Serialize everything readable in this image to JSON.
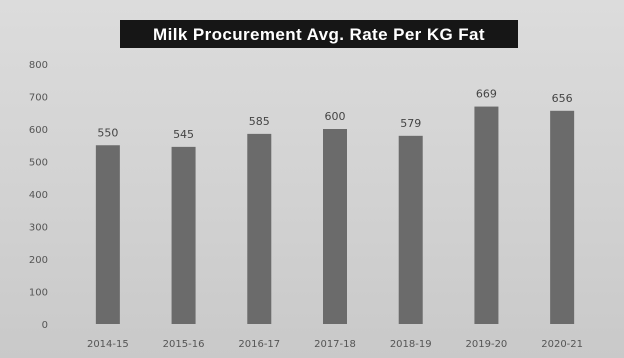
{
  "chart_data": {
    "type": "bar",
    "title": "Milk Procurement Avg. Rate Per KG Fat",
    "xlabel": "",
    "ylabel": "",
    "categories": [
      "2014-15",
      "2015-16",
      "2016-17",
      "2017-18",
      "2018-19",
      "2019-20",
      "2020-21"
    ],
    "values": [
      550,
      545,
      585,
      600,
      579,
      669,
      656
    ],
    "data_labels": [
      "550",
      "545",
      "585",
      "600",
      "579",
      "669",
      "656"
    ],
    "yticks": [
      0,
      100,
      200,
      300,
      400,
      500,
      600,
      700,
      800
    ],
    "ylim": [
      0,
      800
    ],
    "grid": false,
    "legend": "none",
    "bar_color": "#6b6b6b",
    "title_background": "#161616",
    "title_color": "#ffffff"
  }
}
